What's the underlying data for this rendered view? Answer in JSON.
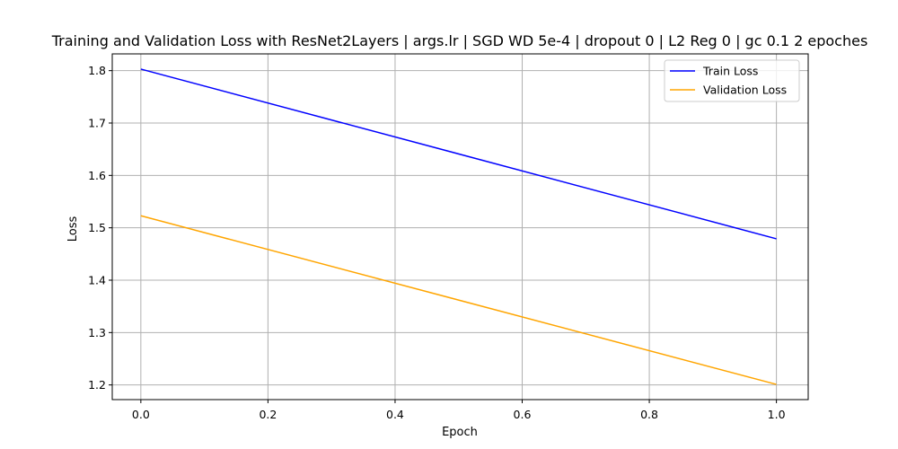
{
  "chart_data": {
    "type": "line",
    "title": "Training and Validation Loss with ResNet2Layers | args.lr | SGD WD 5e-4 | dropout 0 | L2 Reg 0 | gc 0.1 2 epoches",
    "xlabel": "Epoch",
    "ylabel": "Loss",
    "xlim": [
      -0.045,
      1.05
    ],
    "ylim": [
      1.172,
      1.832
    ],
    "x_ticks": [
      0.0,
      0.2,
      0.4,
      0.6,
      0.8,
      1.0
    ],
    "x_tick_labels": [
      "0.0",
      "0.2",
      "0.4",
      "0.6",
      "0.8",
      "1.0"
    ],
    "y_ticks": [
      1.2,
      1.3,
      1.4,
      1.5,
      1.6,
      1.7,
      1.8
    ],
    "y_tick_labels": [
      "1.2",
      "1.3",
      "1.4",
      "1.5",
      "1.6",
      "1.7",
      "1.8"
    ],
    "grid": true,
    "legend_position": "top-right",
    "x": [
      0,
      1
    ],
    "series": [
      {
        "name": "Train Loss",
        "values": [
          1.803,
          1.479
        ],
        "color": "#0000ff"
      },
      {
        "name": "Validation Loss",
        "values": [
          1.523,
          1.201
        ],
        "color": "#ffa500"
      }
    ]
  }
}
